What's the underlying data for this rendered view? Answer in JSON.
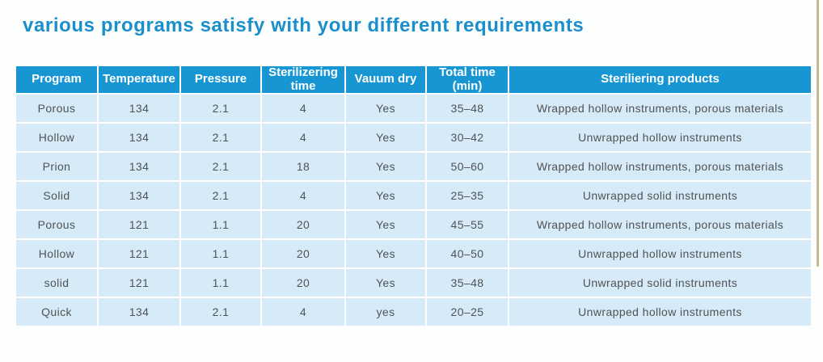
{
  "title": "various programs satisfy with your different requirements",
  "colors": {
    "title_text": "#1a8fcc",
    "header_bg": "#1796d3",
    "header_text": "#ffffff",
    "row_bg": "#d6eaf7",
    "cell_text": "#4f5355",
    "page_edge": "#c9b586"
  },
  "table": {
    "columns": [
      {
        "label": "Program"
      },
      {
        "label": "Temperature"
      },
      {
        "label": "Pressure"
      },
      {
        "label": "Sterilizering\ntime"
      },
      {
        "label": "Vauum dry"
      },
      {
        "label": "Total time\n(min)"
      },
      {
        "label": "Steriliering products"
      }
    ],
    "rows": [
      [
        "Porous",
        "134",
        "2.1",
        "4",
        "Yes",
        "35–48",
        "Wrapped hollow instruments, porous materials"
      ],
      [
        "Hollow",
        "134",
        "2.1",
        "4",
        "Yes",
        "30–42",
        "Unwrapped hollow instruments"
      ],
      [
        "Prion",
        "134",
        "2.1",
        "18",
        "Yes",
        "50–60",
        "Wrapped hollow instruments, porous materials"
      ],
      [
        "Solid",
        "134",
        "2.1",
        "4",
        "Yes",
        "25–35",
        "Unwrapped solid instruments"
      ],
      [
        "Porous",
        "121",
        "1.1",
        "20",
        "Yes",
        "45–55",
        "Wrapped hollow instruments, porous materials"
      ],
      [
        "Hollow",
        "121",
        "1.1",
        "20",
        "Yes",
        "40–50",
        "Unwrapped hollow instruments"
      ],
      [
        "solid",
        "121",
        "1.1",
        "20",
        "Yes",
        "35–48",
        "Unwrapped solid instruments"
      ],
      [
        "Quick",
        "134",
        "2.1",
        "4",
        "yes",
        "20–25",
        "Unwrapped hollow instruments"
      ]
    ]
  }
}
